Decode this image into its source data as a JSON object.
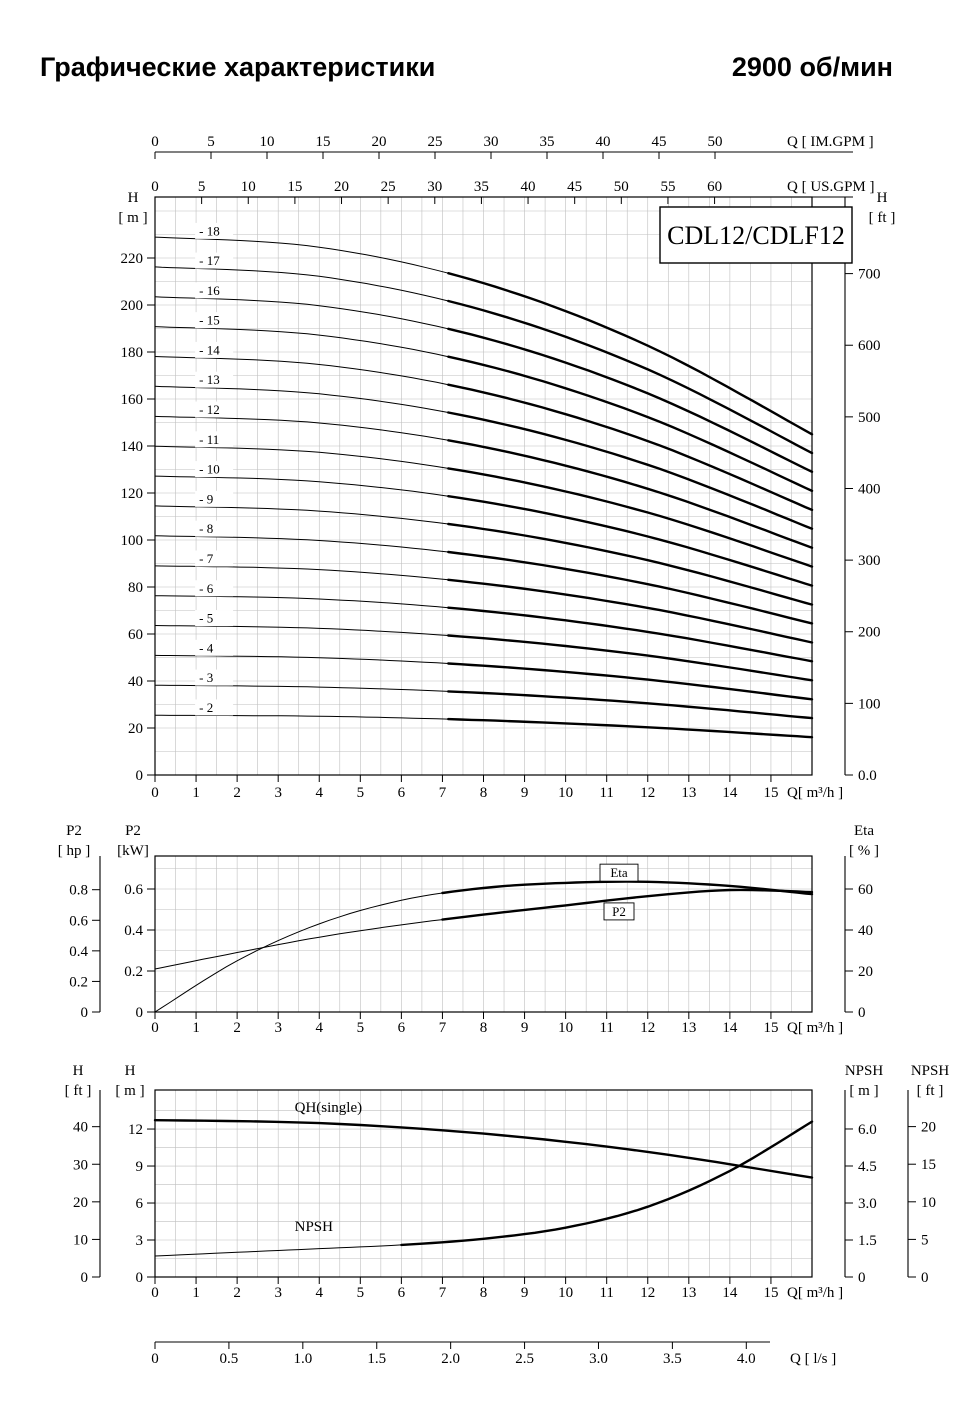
{
  "page": {
    "title_left": "Графические характеристики",
    "title_right": "2900 об/мин"
  },
  "chart_data": [
    {
      "id": "qh-multistage",
      "type": "line",
      "title": "CDL12/CDLF12",
      "xlabel": "Q[ m³/h ]",
      "xlim": [
        0,
        16
      ],
      "x_ticks": [
        0,
        1,
        2,
        3,
        4,
        5,
        6,
        7,
        8,
        9,
        10,
        11,
        12,
        13,
        14,
        15
      ],
      "top_axes": [
        {
          "name": "im-gpm",
          "label": "Q [ IM.GPM ]",
          "ticks": [
            0,
            5,
            10,
            15,
            20,
            25,
            30,
            35,
            40,
            45,
            50
          ]
        },
        {
          "name": "us-gpm",
          "label": "Q [ US.GPM ]",
          "ticks": [
            0,
            5,
            10,
            15,
            20,
            25,
            30,
            35,
            40,
            45,
            50,
            55,
            60
          ]
        }
      ],
      "left_axis": {
        "label": [
          "H",
          "[ m ]"
        ],
        "ticks": [
          0,
          20,
          40,
          60,
          80,
          100,
          120,
          140,
          160,
          180,
          200,
          220
        ],
        "range": [
          0,
          246
        ]
      },
      "right_axis": {
        "label": [
          "H",
          "[ ft ]"
        ],
        "tick_values": [
          0,
          100,
          200,
          300,
          400,
          500,
          600,
          700
        ],
        "tick_labels": [
          "0.0",
          "100",
          "200",
          "300",
          "400",
          "500",
          "600",
          "700"
        ]
      },
      "bold_from_q": 7,
      "x": [
        0,
        4,
        8,
        12,
        16
      ],
      "series": [
        {
          "label": "- 18",
          "stages": 18,
          "h_m": [
            228.9,
            224.6,
            209.3,
            182.7,
            145.0
          ]
        },
        {
          "label": "- 17",
          "stages": 17,
          "h_m": [
            216.2,
            212.2,
            197.7,
            172.6,
            137.0
          ]
        },
        {
          "label": "- 16",
          "stages": 16,
          "h_m": [
            203.5,
            199.7,
            186.1,
            162.4,
            129.0
          ]
        },
        {
          "label": "- 15",
          "stages": 15,
          "h_m": [
            190.8,
            187.2,
            174.5,
            152.3,
            120.9
          ]
        },
        {
          "label": "- 14",
          "stages": 14,
          "h_m": [
            178.1,
            174.7,
            162.8,
            142.1,
            112.8
          ]
        },
        {
          "label": "- 13",
          "stages": 13,
          "h_m": [
            165.4,
            162.2,
            151.2,
            132.0,
            104.8
          ]
        },
        {
          "label": "- 12",
          "stages": 12,
          "h_m": [
            152.6,
            149.8,
            139.6,
            121.8,
            96.7
          ]
        },
        {
          "label": "- 11",
          "stages": 11,
          "h_m": [
            139.9,
            137.3,
            127.9,
            111.7,
            88.7
          ]
        },
        {
          "label": "- 10",
          "stages": 10,
          "h_m": [
            127.2,
            124.8,
            116.3,
            101.5,
            80.6
          ]
        },
        {
          "label": "- 9",
          "stages": 9,
          "h_m": [
            114.5,
            112.3,
            104.7,
            91.4,
            72.5
          ]
        },
        {
          "label": "- 8",
          "stages": 8,
          "h_m": [
            101.8,
            99.8,
            93.0,
            81.2,
            64.5
          ]
        },
        {
          "label": "- 7",
          "stages": 7,
          "h_m": [
            89.0,
            87.4,
            81.4,
            71.1,
            56.4
          ]
        },
        {
          "label": "- 6",
          "stages": 6,
          "h_m": [
            76.3,
            74.9,
            69.8,
            60.9,
            48.4
          ]
        },
        {
          "label": "- 5",
          "stages": 5,
          "h_m": [
            63.6,
            62.4,
            58.2,
            50.8,
            40.3
          ]
        },
        {
          "label": "- 4",
          "stages": 4,
          "h_m": [
            50.9,
            49.9,
            46.5,
            40.6,
            32.2
          ]
        },
        {
          "label": "- 3",
          "stages": 3,
          "h_m": [
            38.2,
            37.4,
            34.9,
            30.5,
            24.2
          ]
        },
        {
          "label": "- 2",
          "stages": 2,
          "h_m": [
            25.4,
            25.0,
            23.3,
            20.3,
            16.1
          ]
        }
      ]
    },
    {
      "id": "power-efficiency",
      "type": "line",
      "xlabel": "Q[ m³/h ]",
      "xlim": [
        0,
        16
      ],
      "x_ticks": [
        0,
        1,
        2,
        3,
        4,
        5,
        6,
        7,
        8,
        9,
        10,
        11,
        12,
        13,
        14,
        15
      ],
      "left_axes": [
        {
          "name": "p2-hp",
          "label": [
            "P2",
            "[ hp ]"
          ],
          "ticks": [
            0,
            0.2,
            0.4,
            0.6,
            0.8
          ]
        },
        {
          "name": "p2-kw",
          "label": [
            "P2",
            "[kW]"
          ],
          "ticks": [
            0,
            0.2,
            0.4,
            0.6
          ],
          "range": [
            0,
            0.76
          ]
        }
      ],
      "right_axis": {
        "name": "eta",
        "label": [
          "Eta",
          "[ % ]"
        ],
        "ticks": [
          0,
          20,
          40,
          60
        ]
      },
      "bold_from_q": 7,
      "series": [
        {
          "name": "Eta",
          "unit": "%",
          "x": [
            0,
            2,
            4,
            6,
            8,
            10,
            12,
            14,
            16
          ],
          "values": [
            0,
            25,
            43,
            54.5,
            60.5,
            63,
            63.5,
            61.5,
            57.5
          ]
        },
        {
          "name": "P2",
          "unit": "kW",
          "x": [
            0,
            2,
            4,
            6,
            8,
            10,
            12,
            14,
            16
          ],
          "values": [
            0.21,
            0.29,
            0.365,
            0.425,
            0.475,
            0.52,
            0.565,
            0.595,
            0.585
          ]
        }
      ]
    },
    {
      "id": "qh-single-npsh",
      "type": "line",
      "xlabel": "Q[ m³/h ]",
      "xlim": [
        0,
        16
      ],
      "x_ticks": [
        0,
        1,
        2,
        3,
        4,
        5,
        6,
        7,
        8,
        9,
        10,
        11,
        12,
        13,
        14,
        15
      ],
      "left_axes": [
        {
          "name": "h-ft",
          "label": [
            "H",
            "[ ft ]"
          ],
          "ticks": [
            0,
            10,
            20,
            30,
            40
          ]
        },
        {
          "name": "h-m",
          "label": [
            "H",
            "[ m ]"
          ],
          "ticks": [
            0,
            3,
            6,
            9,
            12
          ],
          "range": [
            0,
            15.2
          ]
        }
      ],
      "right_axes": [
        {
          "name": "npsh-m",
          "label": [
            "NPSH",
            "[ m ]"
          ],
          "tick_values": [
            0,
            1.5,
            3,
            4.5,
            6
          ],
          "tick_labels": [
            "0",
            "1.5",
            "3.0",
            "4.5",
            "6.0"
          ]
        },
        {
          "name": "npsh-ft",
          "label": [
            "NPSH",
            "[ ft ]"
          ],
          "ticks": [
            0,
            5,
            10,
            15,
            20
          ]
        }
      ],
      "bottom_axis_ls": {
        "label": "Q [ l/s ]",
        "tick_values": [
          0,
          0.5,
          1,
          1.5,
          2,
          2.5,
          3,
          3.5,
          4
        ],
        "tick_labels": [
          "0",
          "0.5",
          "1.0",
          "1.5",
          "2.0",
          "2.5",
          "3.0",
          "3.5",
          "4.0"
        ]
      },
      "series": [
        {
          "name": "QH(single)",
          "unit": "m",
          "x": [
            0,
            4,
            8,
            12,
            16
          ],
          "values": [
            12.72,
            12.48,
            11.63,
            10.15,
            8.06
          ],
          "bold_from_q": 0
        },
        {
          "name": "NPSH",
          "unit": "m",
          "x": [
            0,
            2,
            4,
            6,
            8,
            10,
            12,
            14,
            16
          ],
          "values": [
            0.85,
            1.0,
            1.15,
            1.3,
            1.55,
            2.0,
            2.85,
            4.3,
            6.3
          ],
          "bold_from_q": 6
        }
      ]
    }
  ]
}
